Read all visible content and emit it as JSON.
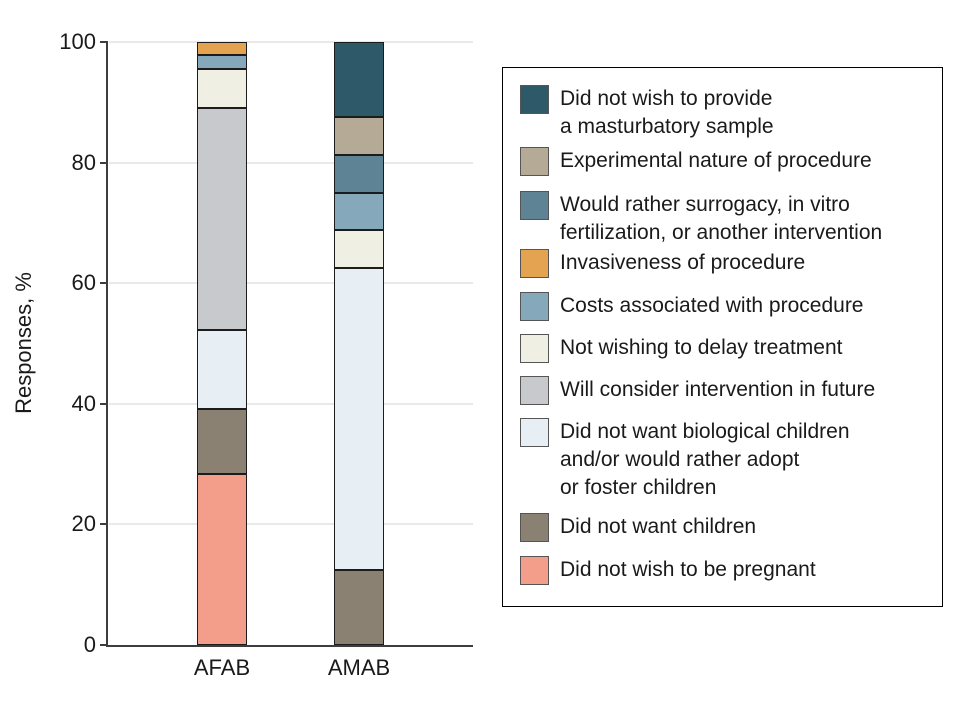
{
  "chart_data": {
    "type": "bar",
    "stacked": true,
    "categories": [
      "AFAB",
      "AMAB"
    ],
    "ylabel": "Responses, %",
    "ylim": [
      0,
      100
    ],
    "yticks": [
      0,
      20,
      40,
      60,
      80,
      100
    ],
    "grid": "horizontal",
    "legend_position": "right",
    "series": [
      {
        "name": "Did not wish to be pregnant",
        "color": "#F39E8A",
        "values": [
          28.3,
          0
        ]
      },
      {
        "name": "Did not want children",
        "color": "#8A8173",
        "values": [
          10.9,
          12.5
        ]
      },
      {
        "name": "Did not want biological children and/or would rather adopt or foster children",
        "color": "#E7EFF4",
        "values": [
          13.0,
          50.0
        ]
      },
      {
        "name": "Will consider intervention in future",
        "color": "#C8C9CC",
        "values": [
          36.9,
          0
        ]
      },
      {
        "name": "Not wishing to delay treatment",
        "color": "#EFEFE4",
        "values": [
          6.5,
          6.25
        ]
      },
      {
        "name": "Costs associated with procedure",
        "color": "#85A9BA",
        "values": [
          2.2,
          6.25
        ]
      },
      {
        "name": "Invasiveness of procedure",
        "color": "#E4A351",
        "values": [
          2.2,
          0
        ]
      },
      {
        "name": "Would rather surrogacy, in vitro fertilization, or another intervention",
        "color": "#5D8395",
        "values": [
          0,
          6.25
        ]
      },
      {
        "name": "Experimental nature of procedure",
        "color": "#B4AA95",
        "values": [
          0,
          6.25
        ]
      },
      {
        "name": "Did not wish to provide a masturbatory sample",
        "color": "#2E5968",
        "values": [
          0,
          12.5
        ]
      }
    ]
  },
  "legend": {
    "items": [
      {
        "color": "#2E5968",
        "lines": [
          "Did not wish to provide",
          "a masturbatory sample"
        ]
      },
      {
        "color": "#B4AA95",
        "lines": [
          "Experimental nature of procedure"
        ]
      },
      {
        "color": "#5D8395",
        "lines": [
          "Would rather surrogacy, in vitro",
          "fertilization, or another intervention"
        ]
      },
      {
        "color": "#E4A351",
        "lines": [
          "Invasiveness of procedure"
        ]
      },
      {
        "color": "#85A9BA",
        "lines": [
          "Costs associated with procedure"
        ]
      },
      {
        "color": "#EFEFE4",
        "lines": [
          "Not wishing to delay treatment"
        ]
      },
      {
        "color": "#C8C9CC",
        "lines": [
          "Will consider intervention in future"
        ]
      },
      {
        "color": "#E7EFF4",
        "lines": [
          "Did not want biological children",
          "and/or would rather adopt",
          "or foster children"
        ]
      },
      {
        "color": "#8A8173",
        "lines": [
          "Did not want children"
        ]
      },
      {
        "color": "#F39E8A",
        "lines": [
          "Did not wish to be pregnant"
        ]
      }
    ]
  },
  "colors": {
    "axis": "#3d3d3d",
    "gridline": "#e9e9eb",
    "bar_border": "#1c1c1c",
    "text": "#1a1a1a"
  }
}
